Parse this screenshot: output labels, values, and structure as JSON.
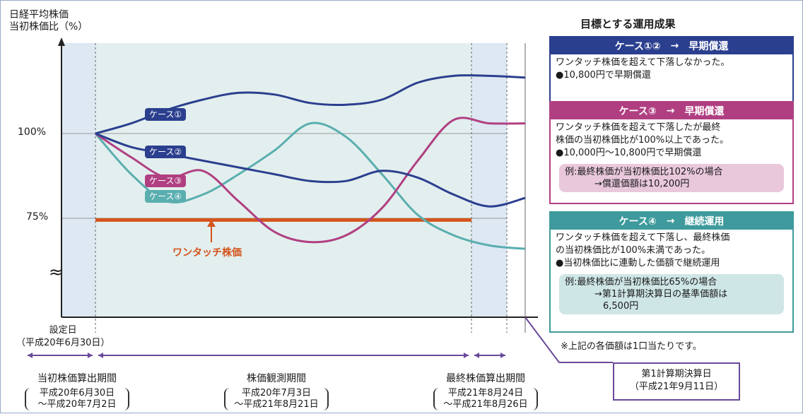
{
  "chart_data": {
    "type": "line",
    "ylabel": "日経平均株価\n当初株価比（%）",
    "yticks": [
      "100%",
      "75%"
    ],
    "break_mark": "≈",
    "ylim": [
      55,
      125
    ],
    "x": [
      0,
      0.1,
      0.2,
      0.3,
      0.4,
      0.5,
      0.6,
      0.7,
      0.8,
      0.9,
      1.0,
      1.1,
      1.2
    ],
    "series": [
      {
        "name": "ケース①",
        "color": "#2b3f8f",
        "values": [
          100,
          103,
          107,
          110,
          112,
          111.5,
          109,
          108.5,
          110,
          115,
          117,
          117,
          116.5
        ]
      },
      {
        "name": "ケース②",
        "color": "#2b3f8f",
        "values": [
          100,
          96,
          94,
          92,
          90,
          88,
          86,
          86,
          89,
          87,
          82,
          78.5,
          81
        ]
      },
      {
        "name": "ケース③",
        "color": "#b03f82",
        "values": [
          100,
          93,
          87,
          89,
          80,
          71,
          68,
          70,
          78,
          92,
          104,
          103,
          103
        ]
      },
      {
        "name": "ケース④",
        "color": "#5aaeb0",
        "values": [
          100,
          88,
          80,
          82,
          88,
          95,
          103,
          99,
          88,
          76,
          70,
          67,
          66
        ]
      }
    ],
    "threshold": {
      "label": "ワンタッチ株価",
      "value": 74.5,
      "color": "#d4541c"
    },
    "periods": [
      {
        "label": "当初株価算出期間",
        "range": "平成20年6月30日\n〜平成20年7月2日"
      },
      {
        "label": "株価観測期間",
        "range": "平成20年7月3日\n〜平成21年8月21日"
      },
      {
        "label": "最終株価算出期間",
        "range": "平成21年8月24日\n〜平成21年8月26日"
      }
    ],
    "start_label": "設定日\n（平成20年6月30日）",
    "settlement_label": "第1計算期決算日\n（平成21年9月11日）"
  },
  "panel": {
    "title": "目標とする運用成果",
    "arrow": "→",
    "cases": [
      {
        "name": "ケース①②",
        "result": "早期償還",
        "color": "#2b3f8f",
        "lines": [
          "ワンタッチ株価を超えて下落しなかった。",
          "●10,800円で早期償還"
        ],
        "note": null,
        "note_color": null
      },
      {
        "name": "ケース③",
        "result": "早期償還",
        "color": "#b03f82",
        "lines": [
          "ワンタッチ株価を超えて下落したが最終",
          "株価の当初株価比が100%以上であった。",
          "●10,000円〜10,800円で早期償還"
        ],
        "note": [
          "例:最終株価が当初株価比102%の場合",
          "→償還価額は10,200円"
        ],
        "note_color": "#e9c8dc"
      },
      {
        "name": "ケース④",
        "result": "継続運用",
        "color": "#3e9a9c",
        "lines": [
          "ワンタッチ株価を超えて下落し、最終株価",
          "の当初株価比が100%未満であった。",
          "●当初株価比に連動した価額で継続運用"
        ],
        "note": [
          "例:最終株価が当初株価比65%の場合",
          "→第1計算期決算日の基準価額は",
          "6,500円"
        ],
        "note_color": "#cfe6e6"
      }
    ],
    "footnote": "※上記の各価額は1口当たりです。"
  }
}
